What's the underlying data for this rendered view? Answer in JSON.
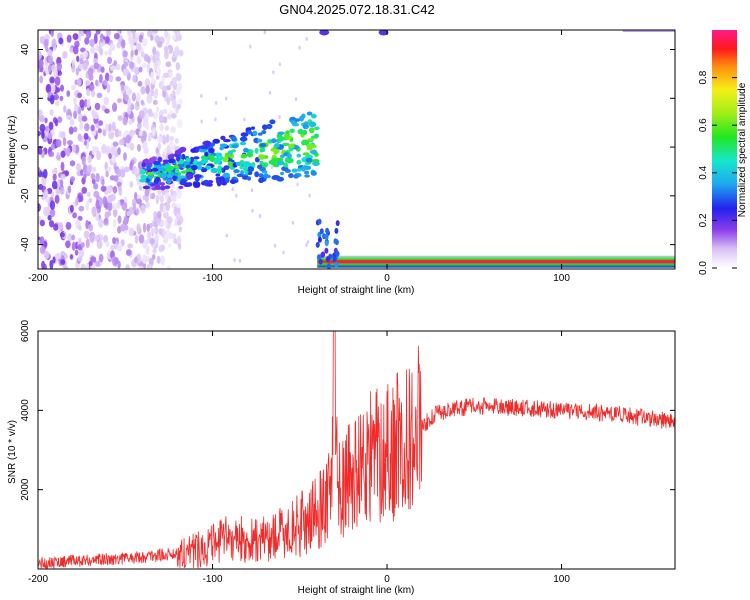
{
  "title": "GN04.2025.072.18.31.C42",
  "colors": {
    "snr_line": "#ee2c2c",
    "axis": "#000000",
    "background": "#ffffff"
  },
  "chart_data": [
    {
      "type": "heatmap",
      "xlabel": "Height of straight line (km)",
      "ylabel": "Frequency (Hz)",
      "xlim": [
        -200,
        165
      ],
      "ylim": [
        -50,
        48
      ],
      "xticks": [
        -200,
        -100,
        0,
        100
      ],
      "yticks": [
        -40,
        -20,
        0,
        20,
        40
      ],
      "colorbar": {
        "label": "Normalized spectral amplitude",
        "ticks": [
          "0.0",
          "0.2",
          "0.4",
          "0.6",
          "0.8"
        ],
        "range": [
          0,
          1
        ]
      },
      "features": [
        {
          "name": "noise",
          "x_range": [
            -200,
            -118
          ],
          "y_range": [
            -50,
            48
          ],
          "amplitude": 0.12
        },
        {
          "name": "meteor-trail",
          "from": [
            -140,
            -12
          ],
          "to": [
            -40,
            2
          ],
          "amplitude": 0.55
        },
        {
          "name": "fm-carrier",
          "x_range": [
            -40,
            165
          ],
          "y": -47,
          "amplitude": 0.95
        }
      ]
    },
    {
      "type": "line",
      "xlabel": "Height of straight line (km)",
      "ylabel": "SNR (10 * v/v)",
      "xlim": [
        -200,
        165
      ],
      "ylim": [
        0,
        6000
      ],
      "xticks": [
        -200,
        -100,
        0,
        100
      ],
      "yticks": [
        2000,
        4000,
        6000
      ],
      "series": [
        {
          "x": [
            -200,
            -180,
            -160,
            -140,
            -120,
            -110,
            -100,
            -90,
            -80,
            -70,
            -60,
            -50,
            -40,
            -35,
            -30,
            -28,
            -25,
            -20,
            -10,
            0,
            5,
            10,
            15,
            20,
            25,
            30,
            40,
            50,
            60,
            80,
            100,
            120,
            140,
            165
          ],
          "values": [
            150,
            200,
            250,
            300,
            400,
            500,
            600,
            800,
            700,
            750,
            900,
            1100,
            1400,
            1800,
            2600,
            2400,
            2100,
            2300,
            2800,
            3000,
            3100,
            3300,
            3500,
            3600,
            3800,
            3950,
            4050,
            4100,
            4100,
            4050,
            4000,
            3950,
            3850,
            3700
          ]
        }
      ]
    }
  ]
}
